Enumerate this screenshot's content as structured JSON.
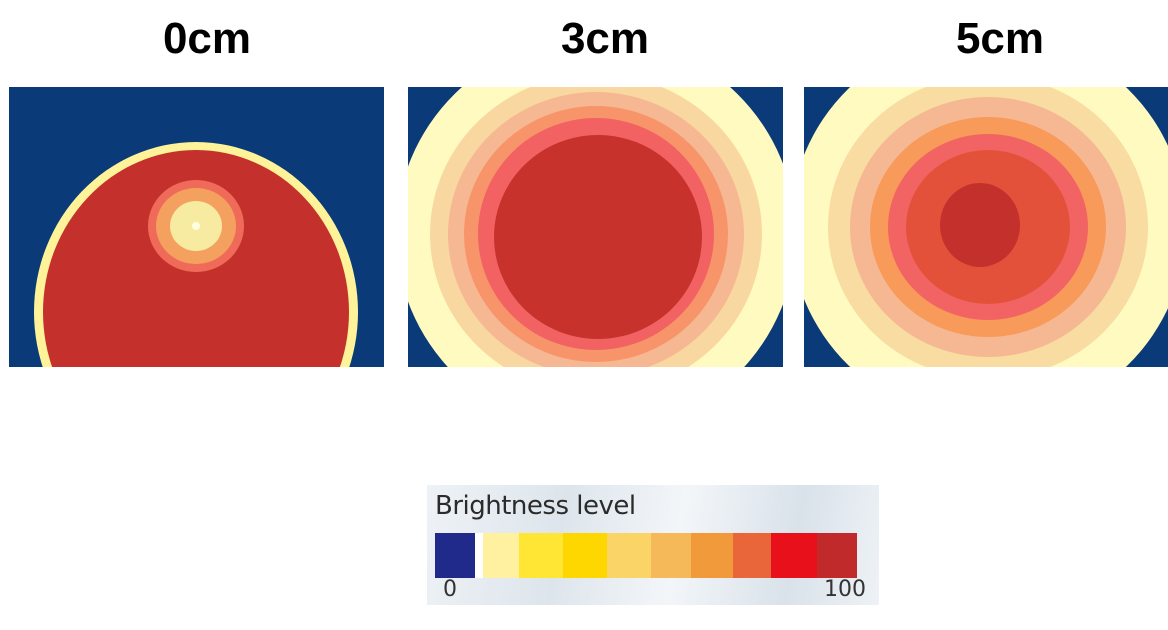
{
  "panels": [
    {
      "label": "0cm",
      "rings": [
        "#f6e8a0",
        "#f4a05e",
        "#f06a5a",
        "#f6eba0",
        "#fff39a",
        "#c4302b"
      ],
      "ring_fractions": [
        0.05,
        0.1,
        0.28,
        0.3,
        1.0,
        0.95
      ],
      "background": "#0b3a78"
    },
    {
      "label": "3cm",
      "rings": [
        "#fffac0",
        "#f8d8a0",
        "#f6b892",
        "#f8946a",
        "#f26262",
        "#c7322d"
      ],
      "ring_fractions": [
        1.0,
        0.9,
        0.82,
        0.76,
        0.7,
        0.62
      ],
      "background": "#0b3a78"
    },
    {
      "label": "5cm",
      "rings": [
        "#fffac0",
        "#f8dca2",
        "#f6b892",
        "#f89a5a",
        "#f26464",
        "#e4513a",
        "#c4302b"
      ],
      "ring_fractions": [
        1.0,
        0.88,
        0.77,
        0.66,
        0.55,
        0.42,
        0.2
      ],
      "background": "#0b3a78"
    }
  ],
  "legend": {
    "title": "Brightness level",
    "min_label": "0",
    "max_label": "100",
    "swatches": [
      "#1f2a8a",
      "#fffbe0",
      "#fff1a0",
      "#ffe534",
      "#ffd700",
      "#fbd468",
      "#f6b95a",
      "#f19a3c",
      "#e8663a",
      "#e8101a",
      "#c12a2a"
    ]
  }
}
